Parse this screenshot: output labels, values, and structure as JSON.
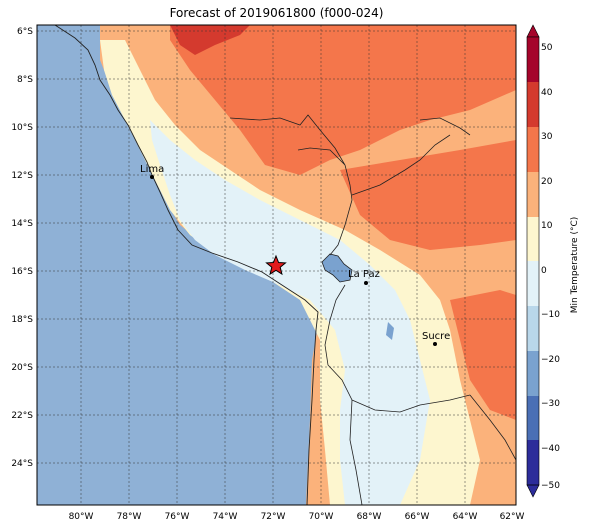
{
  "title": "Forecast of 2019061800 (f000-024)",
  "map": {
    "lon_labels": [
      "80°W",
      "78°W",
      "76°W",
      "74°W",
      "72°W",
      "70°W",
      "68°W",
      "66°W",
      "64°W",
      "62°W"
    ],
    "lat_labels": [
      "6°S",
      "8°S",
      "10°S",
      "12°S",
      "14°S",
      "16°S",
      "18°S",
      "20°S",
      "22°S",
      "24°S"
    ],
    "ocean_color": "#8fb1d6",
    "cities": [
      {
        "name": "Lima",
        "lon": -77.04,
        "lat": -12.05
      },
      {
        "name": "La Paz",
        "lon": -68.15,
        "lat": -16.5
      },
      {
        "name": "Sucre",
        "lon": -65.26,
        "lat": -19.04
      }
    ],
    "marker": {
      "symbol": "star",
      "lon": -71.9,
      "lat": -15.8,
      "color": "#e31a1c"
    }
  },
  "colorbar": {
    "label": "Min Temperature (°C)",
    "ticks": [
      "50",
      "40",
      "30",
      "20",
      "10",
      "0",
      "−10",
      "−20",
      "−30",
      "−40",
      "−50"
    ],
    "colors": [
      "#313695",
      "#4575b4",
      "#74add1",
      "#abd9e9",
      "#e0f3f8",
      "#ffffbf",
      "#fee090",
      "#fdae61",
      "#f46d43",
      "#d73027",
      "#a50026"
    ],
    "bands": [
      {
        "range": "-50 to -40",
        "color": "#2c2c9a"
      },
      {
        "range": "-40 to -30",
        "color": "#4a6fb5"
      },
      {
        "range": "-30 to -20",
        "color": "#7aa2cf"
      },
      {
        "range": "-20 to -10",
        "color": "#b9d7ea"
      },
      {
        "range": "-10 to 0",
        "color": "#e3f2f8"
      },
      {
        "range": "0 to 10",
        "color": "#fdf6cf"
      },
      {
        "range": "10 to 20",
        "color": "#fbb27b"
      },
      {
        "range": "20 to 30",
        "color": "#f4764b"
      },
      {
        "range": "30 to 40",
        "color": "#d43a2e"
      },
      {
        "range": "40 to 50",
        "color": "#a5042b"
      }
    ]
  }
}
